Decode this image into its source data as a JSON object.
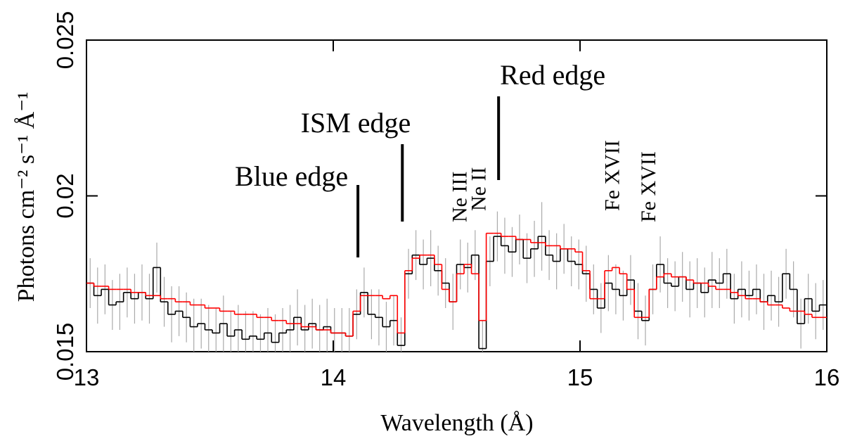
{
  "chart_data": {
    "type": "histogram",
    "xlabel": "Wavelength (Å)",
    "ylabel": "Photons cm⁻² s⁻¹ Å⁻¹",
    "xlim": [
      13,
      16
    ],
    "xticks": [
      13,
      14,
      15,
      16
    ],
    "ylim": [
      0.015,
      0.025
    ],
    "yticks": [
      0.015,
      0.02,
      0.025
    ],
    "bins": [
      13,
      13.03,
      13.06,
      13.09,
      13.12,
      13.15,
      13.18,
      13.21,
      13.24,
      13.27,
      13.3,
      13.33,
      13.36,
      13.39,
      13.42,
      13.45,
      13.48,
      13.51,
      13.54,
      13.57,
      13.6,
      13.63,
      13.66,
      13.69,
      13.72,
      13.75,
      13.78,
      13.81,
      13.84,
      13.87,
      13.9,
      13.93,
      13.96,
      13.99,
      14.02,
      14.05,
      14.08,
      14.11,
      14.14,
      14.17,
      14.2,
      14.23,
      14.26,
      14.29,
      14.32,
      14.35,
      14.38,
      14.41,
      14.44,
      14.47,
      14.5,
      14.53,
      14.56,
      14.59,
      14.62,
      14.65,
      14.68,
      14.71,
      14.74,
      14.77,
      14.8,
      14.83,
      14.86,
      14.89,
      14.92,
      14.95,
      14.98,
      15.01,
      15.04,
      15.07,
      15.1,
      15.13,
      15.16,
      15.19,
      15.22,
      15.25,
      15.28,
      15.31,
      15.34,
      15.37,
      15.4,
      15.43,
      15.46,
      15.49,
      15.52,
      15.55,
      15.58,
      15.61,
      15.64,
      15.67,
      15.7,
      15.73,
      15.76,
      15.79,
      15.82,
      15.85,
      15.88,
      15.91,
      15.94,
      15.97,
      16
    ],
    "series": [
      {
        "color": "#000000",
        "error_color": "#aaaaaa",
        "values": [
          0.0172,
          0.0168,
          0.017,
          0.0165,
          0.0166,
          0.0169,
          0.0167,
          0.0169,
          0.0167,
          0.0177,
          0.0166,
          0.0162,
          0.0163,
          0.0161,
          0.0158,
          0.0159,
          0.0157,
          0.0156,
          0.0159,
          0.0155,
          0.0157,
          0.0154,
          0.0155,
          0.0154,
          0.0156,
          0.0153,
          0.0156,
          0.0157,
          0.0161,
          0.0157,
          0.0159,
          0.0157,
          0.0158,
          0.0156,
          0.0156,
          0.0155,
          0.0162,
          0.0169,
          0.0162,
          0.0161,
          0.0158,
          0.016,
          0.0152,
          0.0175,
          0.0181,
          0.0178,
          0.018,
          0.0176,
          0.0172,
          0.0166,
          0.0178,
          0.0177,
          0.0181,
          0.0151,
          0.0179,
          0.0187,
          0.0184,
          0.0182,
          0.0186,
          0.018,
          0.0183,
          0.0187,
          0.0181,
          0.0179,
          0.0183,
          0.0179,
          0.0178,
          0.0175,
          0.017,
          0.0164,
          0.0172,
          0.017,
          0.0168,
          0.0173,
          0.0163,
          0.016,
          0.017,
          0.0178,
          0.0172,
          0.0171,
          0.0174,
          0.017,
          0.0172,
          0.0169,
          0.0173,
          0.0172,
          0.0175,
          0.0167,
          0.017,
          0.0168,
          0.017,
          0.0166,
          0.0168,
          0.0166,
          0.0175,
          0.017,
          0.0159,
          0.0167,
          0.0163,
          0.0165
        ],
        "errors": [
          0.0008,
          0.0009,
          0.0008,
          0.0008,
          0.0009,
          0.0008,
          0.0008,
          0.0009,
          0.0008,
          0.0008,
          0.0008,
          0.0009,
          0.0008,
          0.0008,
          0.0009,
          0.0008,
          0.0008,
          0.0008,
          0.0009,
          0.0008,
          0.0008,
          0.0009,
          0.0008,
          0.0008,
          0.0008,
          0.0009,
          0.0008,
          0.0008,
          0.0009,
          0.0008,
          0.0008,
          0.0008,
          0.0009,
          0.0008,
          0.0008,
          0.0009,
          0.0008,
          0.0008,
          0.0008,
          0.0009,
          0.0008,
          0.0008,
          0.0009,
          0.0008,
          0.0008,
          0.0008,
          0.0009,
          0.0008,
          0.0008,
          0.0009,
          0.0008,
          0.0008,
          0.0008,
          0.0009,
          0.0008,
          0.0008,
          0.0009,
          0.0008,
          0.0008,
          0.0008,
          0.0009,
          0.0011,
          0.0008,
          0.0009,
          0.0008,
          0.0008,
          0.0008,
          0.0009,
          0.0008,
          0.0008,
          0.0009,
          0.0008,
          0.0008,
          0.0008,
          0.0009,
          0.0008,
          0.0008,
          0.0009,
          0.0008,
          0.0008,
          0.0008,
          0.0009,
          0.0008,
          0.0008,
          0.0009,
          0.0008,
          0.0008,
          0.0008,
          0.0009,
          0.0008,
          0.0008,
          0.0009,
          0.0008,
          0.0008,
          0.0008,
          0.0009,
          0.0008,
          0.0008,
          0.0009,
          0.0008
        ]
      },
      {
        "color": "#ff0000",
        "values": [
          0.0172,
          0.0171,
          0.0171,
          0.017,
          0.017,
          0.017,
          0.0169,
          0.0169,
          0.0168,
          0.0168,
          0.0167,
          0.0167,
          0.0166,
          0.0166,
          0.0165,
          0.0165,
          0.0164,
          0.0164,
          0.0163,
          0.0163,
          0.0162,
          0.0162,
          0.0162,
          0.0161,
          0.0161,
          0.016,
          0.016,
          0.0159,
          0.0159,
          0.0158,
          0.0158,
          0.0157,
          0.0157,
          0.0156,
          0.0156,
          0.0155,
          0.0163,
          0.0168,
          0.0168,
          0.0168,
          0.0167,
          0.0168,
          0.0156,
          0.0176,
          0.018,
          0.0181,
          0.0181,
          0.0178,
          0.017,
          0.0166,
          0.0175,
          0.0178,
          0.0175,
          0.016,
          0.0188,
          0.0188,
          0.0187,
          0.0187,
          0.0186,
          0.0186,
          0.0185,
          0.0185,
          0.0184,
          0.0184,
          0.0183,
          0.0183,
          0.0182,
          0.0176,
          0.0167,
          0.0167,
          0.0176,
          0.0177,
          0.0175,
          0.017,
          0.0161,
          0.0161,
          0.017,
          0.0174,
          0.0175,
          0.0174,
          0.0174,
          0.0173,
          0.0172,
          0.0172,
          0.0171,
          0.017,
          0.017,
          0.0169,
          0.0168,
          0.0167,
          0.0167,
          0.0166,
          0.0165,
          0.0165,
          0.0164,
          0.0163,
          0.0163,
          0.0162,
          0.0161,
          0.0161
        ]
      }
    ],
    "edges": [
      {
        "text": "Blue edge",
        "x": 14.1
      },
      {
        "text": "ISM edge",
        "x": 14.28
      },
      {
        "text": "Red edge",
        "x": 14.67
      }
    ],
    "lines": [
      {
        "text": "Ne III",
        "x": 14.5
      },
      {
        "text": "Ne II",
        "x": 14.6
      },
      {
        "text": "Fe XVII",
        "x": 15.13
      },
      {
        "text": "Fe XVII",
        "x": 15.27
      }
    ]
  }
}
